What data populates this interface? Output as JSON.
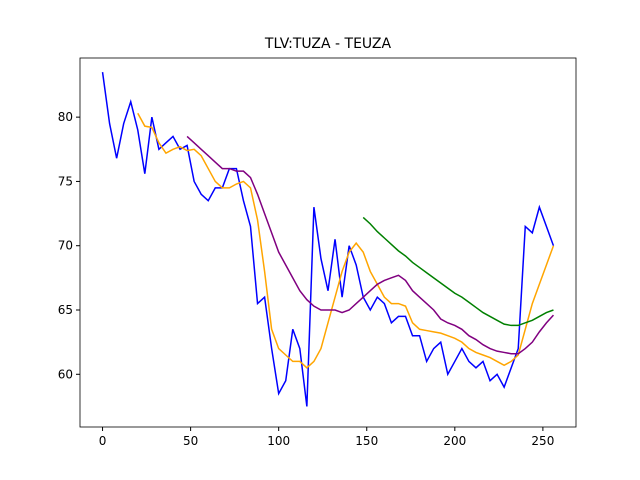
{
  "chart_data": {
    "type": "line",
    "title": "TLV:TUZA - TEUZA",
    "x": [
      0,
      4,
      8,
      12,
      16,
      20,
      24,
      28,
      32,
      36,
      40,
      44,
      48,
      52,
      56,
      60,
      64,
      68,
      72,
      76,
      80,
      84,
      88,
      92,
      96,
      100,
      104,
      108,
      112,
      116,
      120,
      124,
      128,
      132,
      136,
      140,
      144,
      148,
      152,
      156,
      160,
      164,
      168,
      172,
      176,
      180,
      184,
      188,
      192,
      196,
      200,
      204,
      208,
      212,
      216,
      220,
      224,
      228,
      232,
      236,
      240,
      244,
      248,
      252,
      256
    ],
    "series": [
      {
        "color": "blue",
        "values": [
          83.5,
          79.5,
          76.8,
          79.5,
          81.2,
          79,
          75.6,
          80,
          77.5,
          78,
          78.5,
          77.5,
          77.8,
          75,
          74,
          73.5,
          74.5,
          74.5,
          76,
          76,
          73.5,
          71.5,
          65.5,
          66,
          62,
          58.5,
          59.5,
          63.5,
          62,
          57.5,
          73,
          69,
          66.5,
          70.5,
          66,
          70,
          68.5,
          66,
          65,
          66,
          65.5,
          64,
          64.5,
          64.5,
          63,
          63,
          61,
          62,
          62.5,
          60,
          61,
          62,
          61,
          60.5,
          61,
          59.5,
          60,
          59,
          60.5,
          62,
          71.5,
          71,
          73,
          71.5,
          70
        ]
      },
      {
        "color": "orange",
        "values": [
          null,
          null,
          null,
          null,
          null,
          80.3,
          79.3,
          79.2,
          78,
          77.2,
          77.5,
          77.7,
          77.4,
          77.5,
          77,
          76,
          75,
          74.5,
          74.5,
          74.8,
          75,
          74.5,
          72,
          68,
          63.5,
          62,
          61.5,
          61,
          61,
          60.5,
          61,
          62,
          64,
          66,
          68,
          69.5,
          70.2,
          69.5,
          68,
          67,
          66,
          65.5,
          65.5,
          65.3,
          64,
          63.5,
          63.4,
          63.3,
          63.2,
          63,
          62.8,
          62.5,
          62,
          61.7,
          61.5,
          61.3,
          61,
          60.7,
          61,
          61.5,
          63.5,
          65.5,
          67,
          68.5,
          70
        ]
      },
      {
        "color": "purple",
        "values": [
          null,
          null,
          null,
          null,
          null,
          null,
          null,
          null,
          null,
          null,
          null,
          null,
          78.5,
          78,
          77.5,
          77,
          76.5,
          76,
          76,
          75.8,
          75.8,
          75.3,
          74,
          72.5,
          71,
          69.5,
          68.5,
          67.5,
          66.5,
          65.8,
          65.3,
          65,
          65,
          65,
          64.8,
          65,
          65.5,
          66,
          66.5,
          67,
          67.3,
          67.5,
          67.7,
          67.3,
          66.5,
          66,
          65.5,
          65,
          64.3,
          64,
          63.8,
          63.5,
          63,
          62.7,
          62.3,
          62,
          61.8,
          61.7,
          61.6,
          61.6,
          62,
          62.5,
          63.3,
          64,
          64.6
        ]
      },
      {
        "color": "green",
        "values": [
          null,
          null,
          null,
          null,
          null,
          null,
          null,
          null,
          null,
          null,
          null,
          null,
          null,
          null,
          null,
          null,
          null,
          null,
          null,
          null,
          null,
          null,
          null,
          null,
          null,
          null,
          null,
          null,
          null,
          null,
          null,
          null,
          null,
          null,
          null,
          null,
          null,
          72.2,
          71.7,
          71.1,
          70.6,
          70.1,
          69.6,
          69.2,
          68.7,
          68.3,
          67.9,
          67.5,
          67.1,
          66.7,
          66.3,
          66,
          65.6,
          65.2,
          64.8,
          64.5,
          64.2,
          63.9,
          63.8,
          63.8,
          64,
          64.2,
          64.5,
          64.8,
          65
        ]
      }
    ],
    "xlim": [
      -12.8,
      268.8
    ],
    "ylim": [
      55.9,
      84.6
    ],
    "xticks": [
      0,
      50,
      100,
      150,
      200,
      250
    ],
    "yticks": [
      60,
      65,
      70,
      75,
      80
    ]
  }
}
